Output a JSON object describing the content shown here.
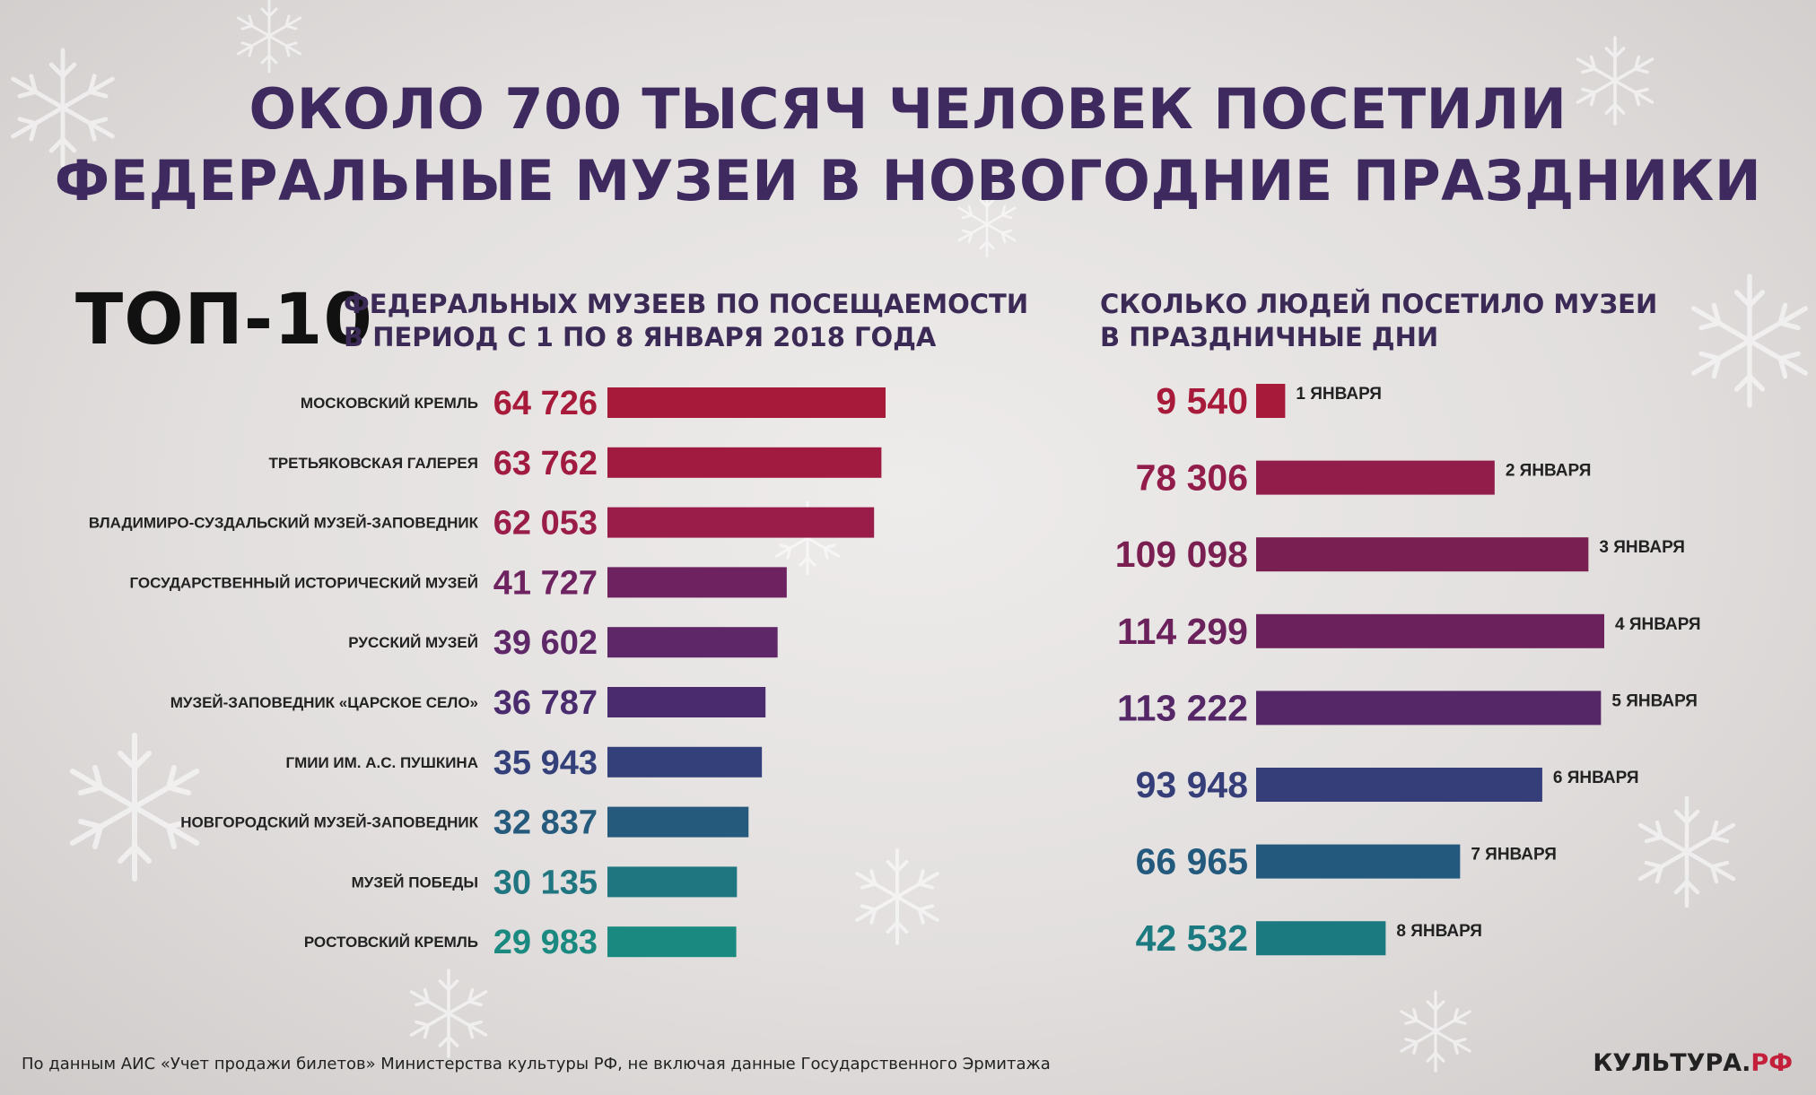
{
  "title": {
    "line1": "ОКОЛО 700 ТЫСЯЧ ЧЕЛОВЕК ПОСЕТИЛИ",
    "line2": "ФЕДЕРАЛЬНЫЕ МУЗЕИ В НОВОГОДНИЕ ПРАЗДНИКИ"
  },
  "left_header": {
    "big": "ТОП-10",
    "line1": "ФЕДЕРАЛЬНЫХ МУЗЕЕВ ПО ПОСЕЩАЕМОСТИ",
    "line2": "В ПЕРИОД С 1 ПО 8 ЯНВАРЯ 2018 ГОДА"
  },
  "right_header": {
    "line1": "СКОЛЬКО ЛЮДЕЙ ПОСЕТИЛО МУЗЕИ",
    "line2": "В ПРАЗДНИЧНЫЕ ДНИ"
  },
  "chart_data": [
    {
      "type": "bar",
      "orientation": "horizontal",
      "categories": [
        "МОСКОВСКИЙ КРЕМЛЬ",
        "ТРЕТЬЯКОВСКАЯ ГАЛЕРЕЯ",
        "ВЛАДИМИРО-СУЗДАЛЬСКИЙ МУЗЕЙ-ЗАПОВЕДНИК",
        "ГОСУДАРСТВЕННЫЙ ИСТОРИЧЕСКИЙ МУЗЕЙ",
        "РУССКИЙ МУЗЕЙ",
        "МУЗЕЙ-ЗАПОВЕДНИК «ЦАРСКОЕ СЕЛО»",
        "ГМИИ ИМ. А.С. ПУШКИНА",
        "НОВГОРОДСКИЙ МУЗЕЙ-ЗАПОВЕДНИК",
        "МУЗЕЙ ПОБЕДЫ",
        "РОСТОВСКИЙ КРЕМЛЬ"
      ],
      "values": [
        64726,
        63762,
        62053,
        41727,
        39602,
        36787,
        35943,
        32837,
        30135,
        29983
      ],
      "value_labels": [
        "64 726",
        "63 762",
        "62 053",
        "41 727",
        "39 602",
        "36 787",
        "35 943",
        "32 837",
        "30 135",
        "29 983"
      ],
      "colors": [
        "#a81a3a",
        "#a11b41",
        "#9a1c48",
        "#6e2260",
        "#5e2868",
        "#4a2c6e",
        "#34407a",
        "#265a7d",
        "#1f7580",
        "#1a8a80"
      ],
      "xlim": [
        0,
        64726
      ],
      "grid": false,
      "legend": "none"
    },
    {
      "type": "bar",
      "orientation": "horizontal",
      "categories": [
        "1 ЯНВАРЯ",
        "2 ЯНВАРЯ",
        "3 ЯНВАРЯ",
        "4 ЯНВАРЯ",
        "5 ЯНВАРЯ",
        "6 ЯНВАРЯ",
        "7 ЯНВАРЯ",
        "8 ЯНВАРЯ"
      ],
      "values": [
        9540,
        78306,
        109098,
        114299,
        113222,
        93948,
        66965,
        42532
      ],
      "value_labels": [
        "9 540",
        "78 306",
        "109 098",
        "114 299",
        "113 222",
        "93 948",
        "66 965",
        "42 532"
      ],
      "colors": [
        "#a81a3a",
        "#921c4a",
        "#7a1f52",
        "#6a215c",
        "#552766",
        "#353e78",
        "#22597d",
        "#1a7a80"
      ],
      "xlim": [
        0,
        114299
      ],
      "grid": false,
      "legend": "none"
    }
  ],
  "footnote": "По данным АИС «Учет продажи билетов»  Министерства культуры РФ, не включая данные Государственного Эрмитажа",
  "brand": {
    "main": "КУЛЬТУРА.",
    "suffix": "РФ"
  }
}
